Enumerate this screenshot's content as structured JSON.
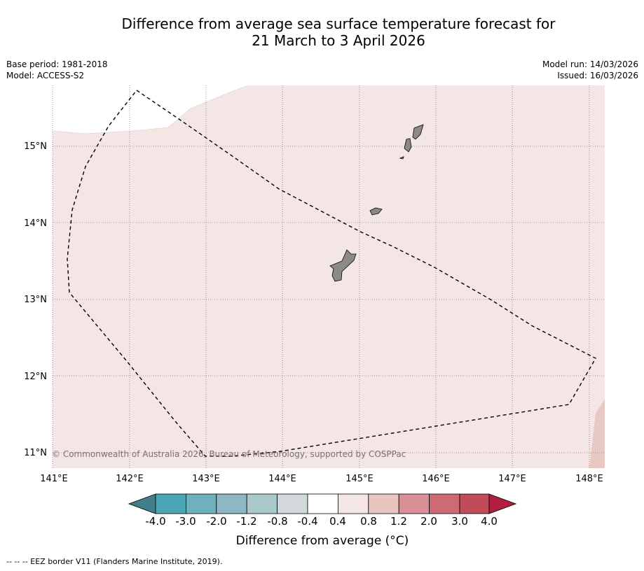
{
  "title_line1": "Difference from average sea surface temperature forecast for",
  "title_line2": "21 March to 3 April 2026",
  "meta": {
    "base_period": "Base period: 1981-2018",
    "model": "Model: ACCESS-S2",
    "model_run": "Model run: 14/03/2026",
    "issued": "Issued: 16/03/2026"
  },
  "map": {
    "lat_labels": [
      "15°N",
      "14°N",
      "13°N",
      "12°N",
      "11°N"
    ],
    "lon_labels": [
      "141°E",
      "142°E",
      "143°E",
      "144°E",
      "145°E",
      "146°E",
      "147°E",
      "148°E"
    ],
    "copyright": "© Commonwealth of Australia 2026, Bureau of Meteorology, supported by COSPPac",
    "colors": {
      "sea_anomaly_main": "#f4e6e5",
      "sea_anomaly_warm": "#e8c8c3",
      "land": "#8c8a89",
      "eez_line": "#000000"
    }
  },
  "colorbar": {
    "labels": [
      "-4.0",
      "-3.0",
      "-2.0",
      "-1.2",
      "-0.8",
      "-0.4",
      "0.4",
      "0.8",
      "1.2",
      "2.0",
      "3.0",
      "4.0"
    ],
    "colors": [
      "#417f8b",
      "#4aa6b5",
      "#6eb0be",
      "#8db7c2",
      "#a9c8cc",
      "#d2d9dc",
      "#ffffff",
      "#f4e6e5",
      "#e8c5c1",
      "#d88f98",
      "#ce6a74",
      "#c24b59",
      "#b21e3f"
    ],
    "title": "Difference from average (°C)"
  },
  "footer": "--  --  -- EEZ border V11 (Flanders Marine Institute, 2019)."
}
